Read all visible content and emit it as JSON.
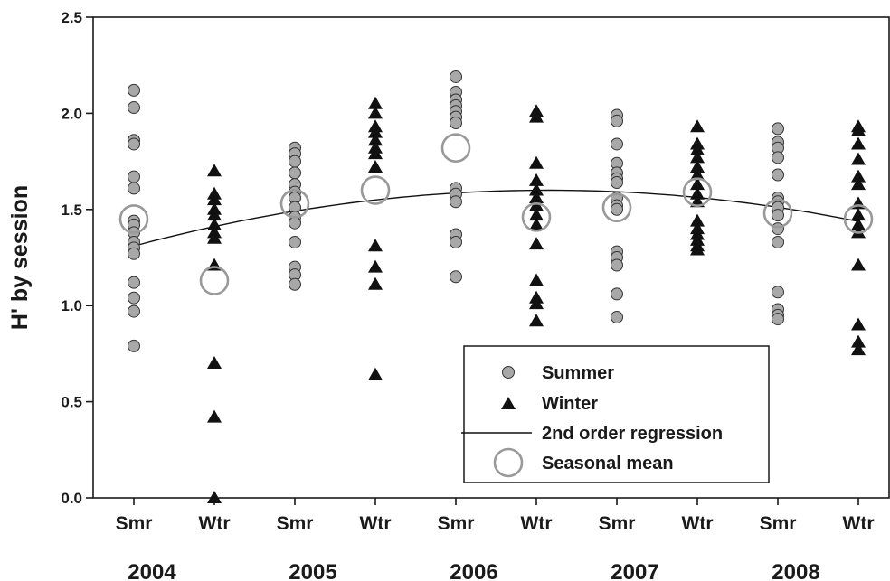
{
  "chart_data": {
    "type": "scatter",
    "ylabel": "H' by session",
    "ylim": [
      0,
      2.5
    ],
    "yticks": [
      "0.0",
      "0.5",
      "1.0",
      "1.5",
      "2.0",
      "2.5"
    ],
    "categories": [
      "Smr",
      "Wtr",
      "Smr",
      "Wtr",
      "Smr",
      "Wtr",
      "Smr",
      "Wtr",
      "Smr",
      "Wtr"
    ],
    "years": [
      "2004",
      "2005",
      "2006",
      "2007",
      "2008"
    ],
    "legend_position": "bottom-right",
    "series": [
      {
        "name": "Summer",
        "marker": "circle",
        "color": "#a8a8a8",
        "points": [
          {
            "x": 1,
            "y": 2.12
          },
          {
            "x": 1,
            "y": 2.03
          },
          {
            "x": 1,
            "y": 1.86
          },
          {
            "x": 1,
            "y": 1.84
          },
          {
            "x": 1,
            "y": 1.67
          },
          {
            "x": 1,
            "y": 1.61
          },
          {
            "x": 1,
            "y": 1.44
          },
          {
            "x": 1,
            "y": 1.42
          },
          {
            "x": 1,
            "y": 1.38
          },
          {
            "x": 1,
            "y": 1.33
          },
          {
            "x": 1,
            "y": 1.3
          },
          {
            "x": 1,
            "y": 1.27
          },
          {
            "x": 1,
            "y": 1.12
          },
          {
            "x": 1,
            "y": 1.04
          },
          {
            "x": 1,
            "y": 0.97
          },
          {
            "x": 1,
            "y": 0.79
          },
          {
            "x": 3,
            "y": 1.82
          },
          {
            "x": 3,
            "y": 1.79
          },
          {
            "x": 3,
            "y": 1.75
          },
          {
            "x": 3,
            "y": 1.69
          },
          {
            "x": 3,
            "y": 1.63
          },
          {
            "x": 3,
            "y": 1.59
          },
          {
            "x": 3,
            "y": 1.56
          },
          {
            "x": 3,
            "y": 1.51
          },
          {
            "x": 3,
            "y": 1.46
          },
          {
            "x": 3,
            "y": 1.43
          },
          {
            "x": 3,
            "y": 1.33
          },
          {
            "x": 3,
            "y": 1.2
          },
          {
            "x": 3,
            "y": 1.16
          },
          {
            "x": 3,
            "y": 1.11
          },
          {
            "x": 5,
            "y": 2.19
          },
          {
            "x": 5,
            "y": 2.11
          },
          {
            "x": 5,
            "y": 2.07
          },
          {
            "x": 5,
            "y": 2.04
          },
          {
            "x": 5,
            "y": 2.01
          },
          {
            "x": 5,
            "y": 1.98
          },
          {
            "x": 5,
            "y": 1.95
          },
          {
            "x": 5,
            "y": 1.61
          },
          {
            "x": 5,
            "y": 1.58
          },
          {
            "x": 5,
            "y": 1.54
          },
          {
            "x": 5,
            "y": 1.37
          },
          {
            "x": 5,
            "y": 1.33
          },
          {
            "x": 5,
            "y": 1.15
          },
          {
            "x": 7,
            "y": 1.99
          },
          {
            "x": 7,
            "y": 1.96
          },
          {
            "x": 7,
            "y": 1.84
          },
          {
            "x": 7,
            "y": 1.74
          },
          {
            "x": 7,
            "y": 1.69
          },
          {
            "x": 7,
            "y": 1.66
          },
          {
            "x": 7,
            "y": 1.64
          },
          {
            "x": 7,
            "y": 1.56
          },
          {
            "x": 7,
            "y": 1.52
          },
          {
            "x": 7,
            "y": 1.5
          },
          {
            "x": 7,
            "y": 1.28
          },
          {
            "x": 7,
            "y": 1.25
          },
          {
            "x": 7,
            "y": 1.21
          },
          {
            "x": 7,
            "y": 1.06
          },
          {
            "x": 7,
            "y": 0.94
          },
          {
            "x": 9,
            "y": 1.92
          },
          {
            "x": 9,
            "y": 1.85
          },
          {
            "x": 9,
            "y": 1.82
          },
          {
            "x": 9,
            "y": 1.77
          },
          {
            "x": 9,
            "y": 1.68
          },
          {
            "x": 9,
            "y": 1.56
          },
          {
            "x": 9,
            "y": 1.54
          },
          {
            "x": 9,
            "y": 1.51
          },
          {
            "x": 9,
            "y": 1.47
          },
          {
            "x": 9,
            "y": 1.4
          },
          {
            "x": 9,
            "y": 1.33
          },
          {
            "x": 9,
            "y": 1.07
          },
          {
            "x": 9,
            "y": 0.98
          },
          {
            "x": 9,
            "y": 0.95
          },
          {
            "x": 9,
            "y": 0.93
          }
        ]
      },
      {
        "name": "Winter",
        "marker": "triangle",
        "color": "#111111",
        "points": [
          {
            "x": 2,
            "y": 1.7
          },
          {
            "x": 2,
            "y": 1.58
          },
          {
            "x": 2,
            "y": 1.55
          },
          {
            "x": 2,
            "y": 1.5
          },
          {
            "x": 2,
            "y": 1.47
          },
          {
            "x": 2,
            "y": 1.42
          },
          {
            "x": 2,
            "y": 1.38
          },
          {
            "x": 2,
            "y": 1.35
          },
          {
            "x": 2,
            "y": 1.21
          },
          {
            "x": 2,
            "y": 0.7
          },
          {
            "x": 2,
            "y": 0.42
          },
          {
            "x": 2,
            "y": 0.0
          },
          {
            "x": 4,
            "y": 2.05
          },
          {
            "x": 4,
            "y": 2.0
          },
          {
            "x": 4,
            "y": 1.93
          },
          {
            "x": 4,
            "y": 1.9
          },
          {
            "x": 4,
            "y": 1.86
          },
          {
            "x": 4,
            "y": 1.82
          },
          {
            "x": 4,
            "y": 1.79
          },
          {
            "x": 4,
            "y": 1.72
          },
          {
            "x": 4,
            "y": 1.31
          },
          {
            "x": 4,
            "y": 1.2
          },
          {
            "x": 4,
            "y": 1.11
          },
          {
            "x": 4,
            "y": 0.64
          },
          {
            "x": 6,
            "y": 2.01
          },
          {
            "x": 6,
            "y": 1.98
          },
          {
            "x": 6,
            "y": 1.74
          },
          {
            "x": 6,
            "y": 1.65
          },
          {
            "x": 6,
            "y": 1.6
          },
          {
            "x": 6,
            "y": 1.56
          },
          {
            "x": 6,
            "y": 1.52
          },
          {
            "x": 6,
            "y": 1.47
          },
          {
            "x": 6,
            "y": 1.42
          },
          {
            "x": 6,
            "y": 1.32
          },
          {
            "x": 6,
            "y": 1.13
          },
          {
            "x": 6,
            "y": 1.04
          },
          {
            "x": 6,
            "y": 1.01
          },
          {
            "x": 6,
            "y": 0.92
          },
          {
            "x": 8,
            "y": 1.93
          },
          {
            "x": 8,
            "y": 1.84
          },
          {
            "x": 8,
            "y": 1.81
          },
          {
            "x": 8,
            "y": 1.77
          },
          {
            "x": 8,
            "y": 1.72
          },
          {
            "x": 8,
            "y": 1.68
          },
          {
            "x": 8,
            "y": 1.63
          },
          {
            "x": 8,
            "y": 1.58
          },
          {
            "x": 8,
            "y": 1.54
          },
          {
            "x": 8,
            "y": 1.44
          },
          {
            "x": 8,
            "y": 1.4
          },
          {
            "x": 8,
            "y": 1.37
          },
          {
            "x": 8,
            "y": 1.34
          },
          {
            "x": 8,
            "y": 1.31
          },
          {
            "x": 8,
            "y": 1.29
          },
          {
            "x": 10,
            "y": 1.93
          },
          {
            "x": 10,
            "y": 1.91
          },
          {
            "x": 10,
            "y": 1.84
          },
          {
            "x": 10,
            "y": 1.76
          },
          {
            "x": 10,
            "y": 1.67
          },
          {
            "x": 10,
            "y": 1.63
          },
          {
            "x": 10,
            "y": 1.53
          },
          {
            "x": 10,
            "y": 1.47
          },
          {
            "x": 10,
            "y": 1.42
          },
          {
            "x": 10,
            "y": 1.38
          },
          {
            "x": 10,
            "y": 1.21
          },
          {
            "x": 10,
            "y": 0.9
          },
          {
            "x": 10,
            "y": 0.81
          },
          {
            "x": 10,
            "y": 0.77
          }
        ]
      },
      {
        "name": "2nd order regression",
        "marker": "line",
        "color": "#111111",
        "x": [
          1,
          2,
          3,
          4,
          5,
          6,
          7,
          8,
          9,
          10
        ],
        "values": [
          1.31,
          1.41,
          1.49,
          1.55,
          1.59,
          1.6,
          1.59,
          1.56,
          1.51,
          1.44
        ]
      },
      {
        "name": "Seasonal mean",
        "marker": "open-circle",
        "color": "#999999",
        "x": [
          1,
          2,
          3,
          4,
          5,
          6,
          7,
          8,
          9,
          10
        ],
        "values": [
          1.45,
          1.13,
          1.53,
          1.6,
          1.82,
          1.46,
          1.51,
          1.59,
          1.48,
          1.45
        ]
      }
    ]
  }
}
